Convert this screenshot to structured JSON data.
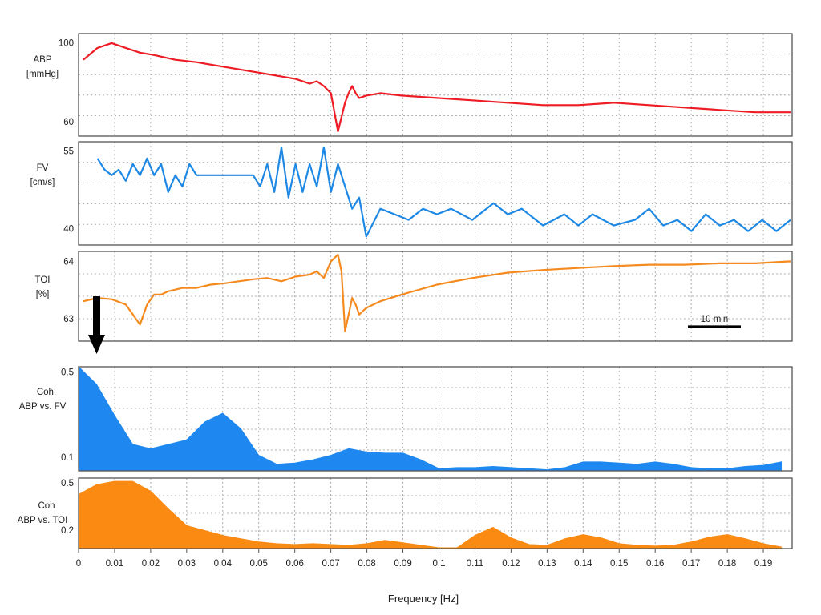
{
  "colors": {
    "abp": "#ee1c24",
    "fv": "#1e88e5",
    "toi": "#f58a1f",
    "coh_fv": "#1e88f0",
    "coh_toi": "#fa8a12",
    "axis": "#555555",
    "grid": "#9a9a9a",
    "marker": "#000000"
  },
  "chart_data": [
    {
      "id": "abp",
      "type": "line",
      "ylabel": [
        "ABP",
        "[mmHg]"
      ],
      "ylim": [
        58,
        101
      ],
      "yticks": [
        60,
        100
      ],
      "grid": true,
      "series": [
        {
          "name": "",
          "color": "#ee1c24",
          "x": [
            0,
            2,
            4,
            6,
            8,
            10,
            13,
            16,
            20,
            24,
            28,
            30,
            32,
            33,
            34,
            35,
            35.5,
            36,
            36.5,
            37,
            37.5,
            38,
            38.5,
            39,
            40,
            42,
            45,
            50,
            55,
            60,
            65,
            70,
            75,
            80,
            85,
            90,
            95,
            100
          ],
          "y": [
            90,
            95,
            97,
            95,
            93,
            92,
            90,
            89,
            87,
            85,
            83,
            82,
            80,
            81,
            79,
            76,
            68,
            60,
            66,
            72,
            76,
            79,
            76,
            74,
            75,
            76,
            75,
            74,
            73,
            72,
            71,
            71,
            72,
            71,
            70,
            69,
            68,
            68
          ]
        }
      ]
    },
    {
      "id": "fv",
      "type": "line",
      "ylabel": [
        "FV",
        "[cm/s]"
      ],
      "ylim": [
        37.5,
        56
      ],
      "yticks": [
        40,
        55
      ],
      "grid": true,
      "series": [
        {
          "name": "",
          "color": "#1e88e5",
          "x": [
            2,
            3,
            4,
            5,
            6,
            7,
            8,
            9,
            10,
            11,
            12,
            13,
            14,
            15,
            16,
            17,
            18,
            19,
            20,
            21,
            22,
            23,
            24,
            25,
            26,
            27,
            28,
            29,
            30,
            31,
            32,
            33,
            34,
            35,
            36,
            37,
            38,
            39,
            40,
            42,
            44,
            46,
            48,
            50,
            52,
            55,
            58,
            60,
            62,
            65,
            68,
            70,
            72,
            75,
            78,
            80,
            82,
            84,
            86,
            88,
            90,
            92,
            94,
            96,
            98,
            100
          ],
          "y": [
            53,
            51,
            50,
            51,
            49,
            52,
            50,
            53,
            50,
            52,
            47,
            50,
            48,
            52,
            50,
            50,
            50,
            50,
            50,
            50,
            50,
            50,
            50,
            48,
            52,
            47,
            55,
            46,
            52,
            47,
            52,
            48,
            55,
            47,
            52,
            48,
            44,
            46,
            39,
            44,
            43,
            42,
            44,
            43,
            44,
            42,
            45,
            43,
            44,
            41,
            43,
            41,
            43,
            41,
            42,
            44,
            41,
            42,
            40,
            43,
            41,
            42,
            40,
            42,
            40,
            42
          ]
        }
      ]
    },
    {
      "id": "toi",
      "type": "line",
      "ylabel": [
        "TOI",
        "[%]"
      ],
      "ylim": [
        62.75,
        64.1
      ],
      "yticks": [
        63,
        64
      ],
      "grid": true,
      "annotation": {
        "label": "10 min"
      },
      "series": [
        {
          "name": "",
          "color": "#f58a1f",
          "x": [
            0,
            2,
            4,
            6,
            8,
            9,
            10,
            11,
            12,
            14,
            16,
            18,
            20,
            22,
            24,
            26,
            28,
            30,
            32,
            33,
            34,
            35,
            36,
            36.5,
            37,
            37.5,
            38,
            38.5,
            39,
            40,
            42,
            45,
            50,
            55,
            60,
            65,
            70,
            75,
            80,
            85,
            90,
            95,
            100
          ],
          "y": [
            63.35,
            63.4,
            63.38,
            63.3,
            63.0,
            63.3,
            63.45,
            63.45,
            63.5,
            63.55,
            63.55,
            63.6,
            63.62,
            63.65,
            63.68,
            63.7,
            63.65,
            63.72,
            63.75,
            63.8,
            63.7,
            63.95,
            64.05,
            63.8,
            62.9,
            63.15,
            63.4,
            63.3,
            63.15,
            63.25,
            63.35,
            63.45,
            63.6,
            63.7,
            63.78,
            63.82,
            63.85,
            63.88,
            63.9,
            63.9,
            63.92,
            63.92,
            63.95
          ]
        }
      ]
    },
    {
      "id": "coh_abp_fv",
      "type": "area",
      "ylabel": [
        "Coh.",
        "ABP vs. FV"
      ],
      "ylim": [
        0.05,
        0.52
      ],
      "yticks": [
        0.1,
        0.5
      ],
      "grid": true,
      "series": [
        {
          "name": "",
          "color": "#1e88f0",
          "x": [
            0,
            0.005,
            0.01,
            0.015,
            0.02,
            0.025,
            0.03,
            0.035,
            0.04,
            0.045,
            0.05,
            0.055,
            0.06,
            0.065,
            0.07,
            0.075,
            0.08,
            0.085,
            0.09,
            0.095,
            0.1,
            0.105,
            0.11,
            0.115,
            0.12,
            0.125,
            0.13,
            0.135,
            0.14,
            0.145,
            0.15,
            0.155,
            0.16,
            0.165,
            0.17,
            0.175,
            0.18,
            0.185,
            0.19,
            0.195
          ],
          "y": [
            0.52,
            0.44,
            0.3,
            0.17,
            0.15,
            0.17,
            0.19,
            0.27,
            0.31,
            0.24,
            0.12,
            0.08,
            0.085,
            0.1,
            0.12,
            0.15,
            0.135,
            0.13,
            0.13,
            0.1,
            0.06,
            0.065,
            0.065,
            0.07,
            0.065,
            0.06,
            0.055,
            0.065,
            0.09,
            0.09,
            0.085,
            0.08,
            0.09,
            0.08,
            0.065,
            0.06,
            0.06,
            0.07,
            0.075,
            0.09
          ]
        }
      ]
    },
    {
      "id": "coh_abp_toi",
      "type": "area",
      "ylabel": [
        "Coh",
        "ABP vs. TOI"
      ],
      "ylim": [
        0.1,
        0.53
      ],
      "yticks": [
        0.2,
        0.5
      ],
      "grid": true,
      "series": [
        {
          "name": "",
          "color": "#fa8a12",
          "x": [
            0,
            0.005,
            0.01,
            0.015,
            0.02,
            0.025,
            0.03,
            0.035,
            0.04,
            0.045,
            0.05,
            0.055,
            0.06,
            0.065,
            0.07,
            0.075,
            0.08,
            0.085,
            0.09,
            0.095,
            0.1,
            0.105,
            0.11,
            0.115,
            0.12,
            0.125,
            0.13,
            0.135,
            0.14,
            0.145,
            0.15,
            0.155,
            0.16,
            0.165,
            0.17,
            0.175,
            0.18,
            0.185,
            0.19,
            0.195
          ],
          "y": [
            0.43,
            0.49,
            0.51,
            0.51,
            0.45,
            0.34,
            0.24,
            0.21,
            0.18,
            0.16,
            0.14,
            0.13,
            0.125,
            0.13,
            0.125,
            0.12,
            0.13,
            0.15,
            0.135,
            0.12,
            0.105,
            0.105,
            0.18,
            0.23,
            0.165,
            0.125,
            0.12,
            0.16,
            0.185,
            0.165,
            0.13,
            0.12,
            0.115,
            0.12,
            0.14,
            0.17,
            0.185,
            0.16,
            0.13,
            0.11
          ]
        }
      ]
    }
  ],
  "x_axis": {
    "label": "Frequency [Hz]",
    "tick_labels": [
      "0",
      "0.01",
      "0.02",
      "0.03",
      "0.04",
      "0.05",
      "0.06",
      "0.07",
      "0.08",
      "0.09",
      "0.1",
      "0.11",
      "0.12",
      "0.13",
      "0.14",
      "0.15",
      "0.16",
      "0.17",
      "0.18",
      "0.19"
    ],
    "range": [
      0,
      0.198
    ]
  }
}
